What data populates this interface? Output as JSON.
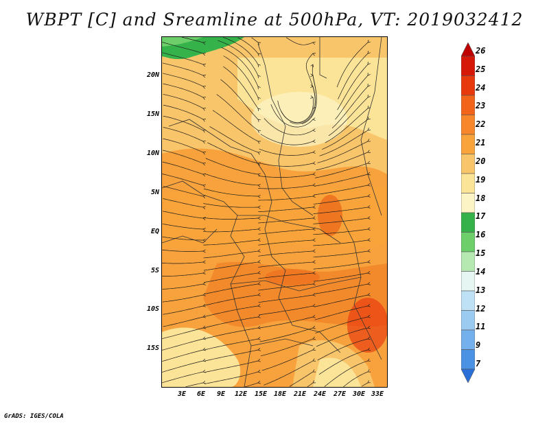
{
  "title": "WBPT [C] and Sreamline at 500hPa, VT: 2019032412",
  "map": {
    "lat_labels": [
      "20N",
      "15N",
      "10N",
      "5N",
      "EQ",
      "5S",
      "10S",
      "15S"
    ],
    "lon_labels": [
      "3E",
      "6E",
      "9E",
      "12E",
      "15E",
      "18E",
      "21E",
      "24E",
      "27E",
      "30E",
      "33E"
    ]
  },
  "colorbar": {
    "labels": [
      "26",
      "25",
      "24",
      "23",
      "22",
      "21",
      "20",
      "19",
      "18",
      "17",
      "16",
      "15",
      "14",
      "13",
      "12",
      "11",
      "9",
      "7"
    ],
    "colors": [
      "#c00000",
      "#d51808",
      "#e8390d",
      "#f2641a",
      "#f7872a",
      "#f8a43a",
      "#f9c56a",
      "#fbe398",
      "#fcf4c4",
      "#36b24a",
      "#6ccf6a",
      "#b6e8b1",
      "#e6f6f2",
      "#bfe1f6",
      "#9ccbf2",
      "#74b0ec",
      "#4b92e4",
      "#2a6fd8"
    ]
  },
  "credit": "GrADS: IGES/COLA"
}
